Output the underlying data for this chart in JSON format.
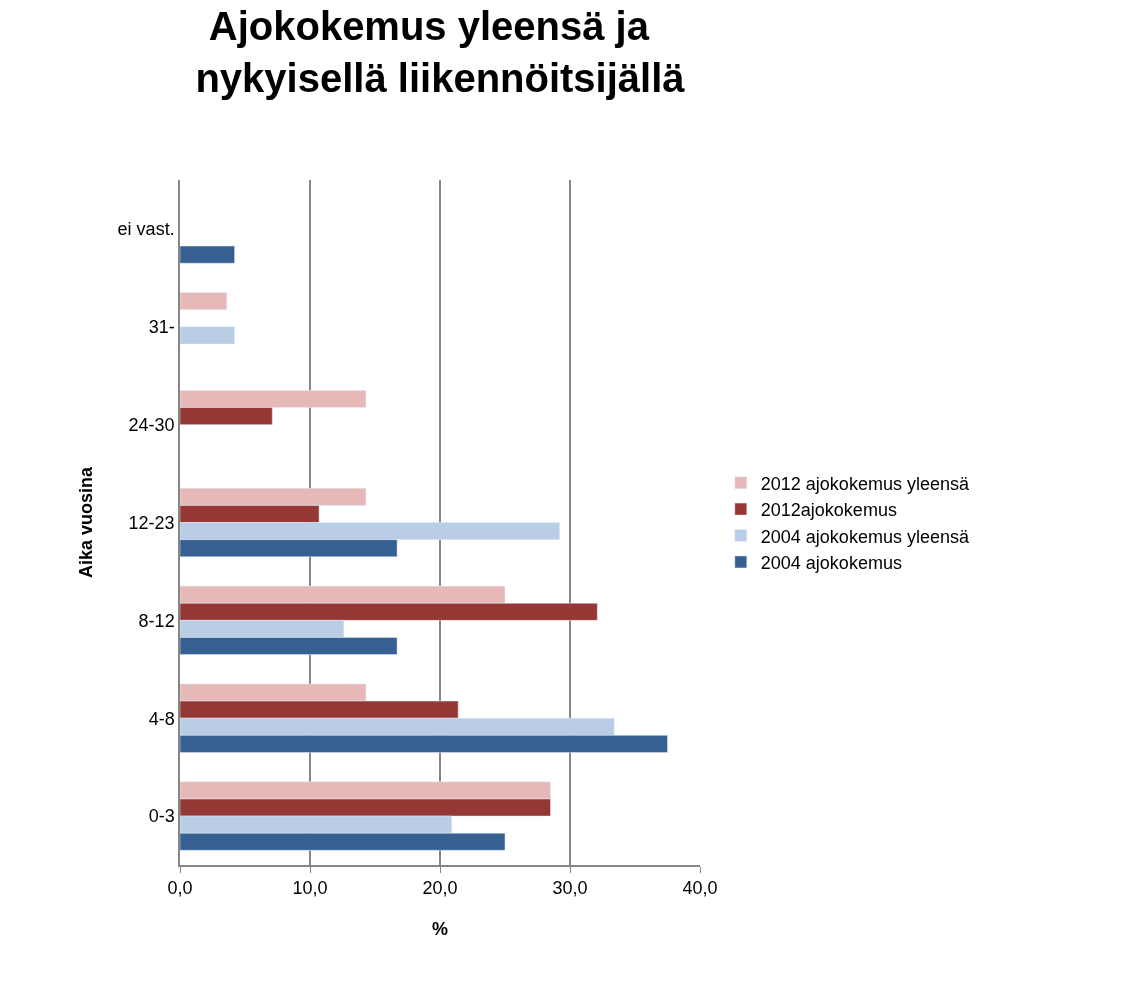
{
  "chart_data": {
    "type": "bar",
    "orientation": "horizontal",
    "title": "Ajokokemus yleensä ja  nykyisellä liikennöitsijällä",
    "xlabel": "%",
    "ylabel": "Aika vuosina",
    "categories": [
      "ei vast.",
      "31-",
      "24-30",
      "12-23",
      "8-12",
      "4-8",
      "0-3"
    ],
    "series": [
      {
        "name": "2012 ajokokemus yleensä",
        "color": "#e6b9b8",
        "values": [
          null,
          3.6,
          14.3,
          14.3,
          25.0,
          14.3,
          28.5
        ]
      },
      {
        "name": "2012ajokokemus",
        "color": "#953735",
        "values": [
          null,
          null,
          7.1,
          10.7,
          32.1,
          21.4,
          28.5
        ]
      },
      {
        "name": "2004 ajokokemus yleensä",
        "color": "#b9cde5",
        "values": [
          null,
          4.2,
          null,
          29.2,
          12.6,
          33.4,
          20.9
        ]
      },
      {
        "name": "2004 ajokokemus",
        "color": "#366092",
        "values": [
          4.2,
          null,
          null,
          16.7,
          16.7,
          37.5,
          25.0
        ]
      }
    ],
    "xlim": [
      0,
      40
    ],
    "xticks": [
      {
        "value": 0,
        "label": "0,0"
      },
      {
        "value": 10,
        "label": "10,0"
      },
      {
        "value": 20,
        "label": "20,0"
      },
      {
        "value": 30,
        "label": "30,0"
      },
      {
        "value": 40,
        "label": "40,0"
      }
    ],
    "grid": "x",
    "legend": "right"
  }
}
